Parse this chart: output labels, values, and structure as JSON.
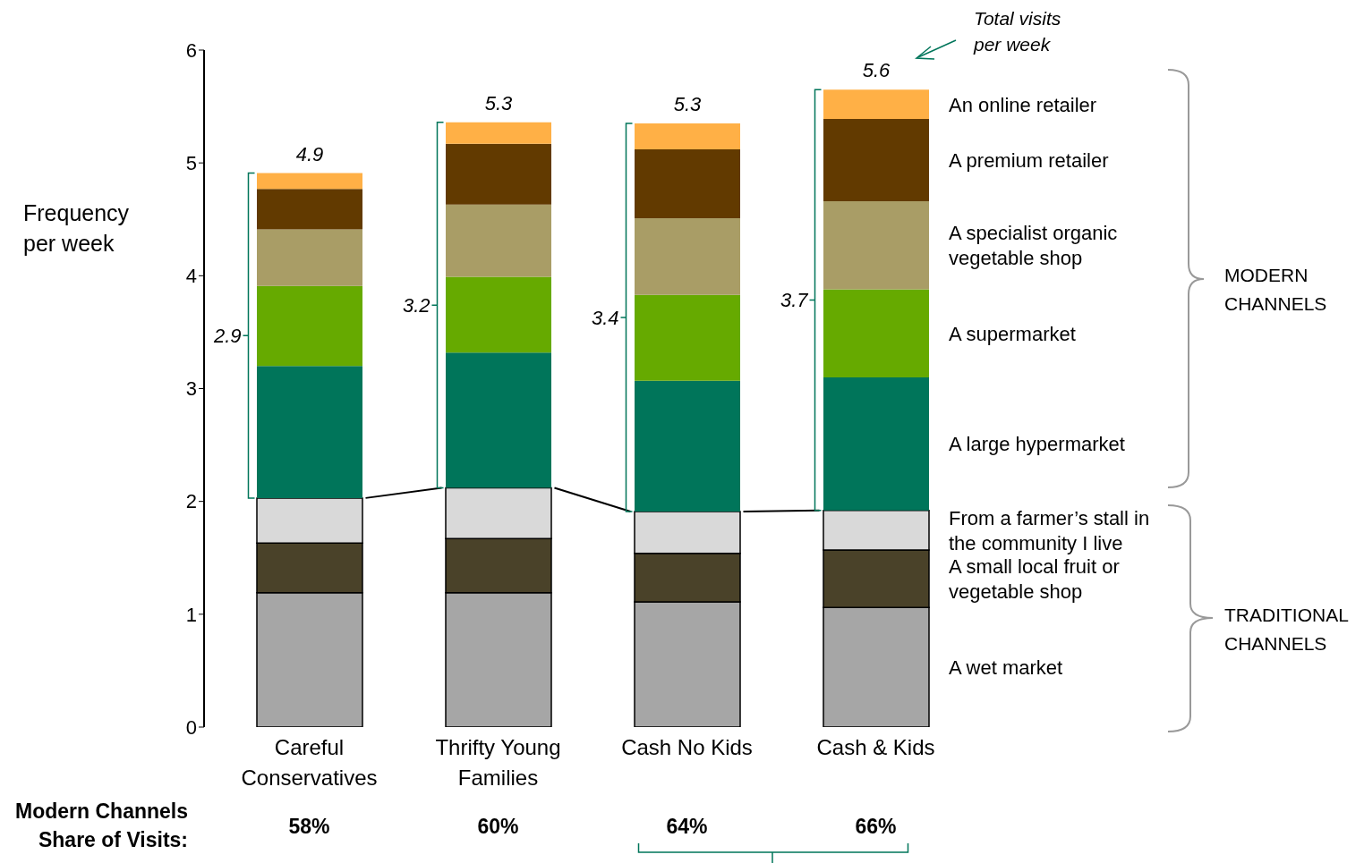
{
  "chart_data": {
    "type": "bar",
    "stacked": true,
    "ylabel": "Frequency per week",
    "ylim": [
      0,
      6
    ],
    "yticks": [
      0,
      1,
      2,
      3,
      4,
      5,
      6
    ],
    "categories": [
      "Careful Conservatives",
      "Thrifty Young Families",
      "Cash No Kids",
      "Cash & Kids"
    ],
    "series": [
      {
        "name": "A wet market",
        "color": "#a6a6a6",
        "values": [
          1.19,
          1.19,
          1.11,
          1.06
        ]
      },
      {
        "name": "A small local fruit or vegetable shop",
        "color": "#4a4229",
        "values": [
          0.44,
          0.48,
          0.43,
          0.51
        ]
      },
      {
        "name": "From a farmer’s stall in the community I live",
        "color": "#d9d9d9",
        "values": [
          0.4,
          0.45,
          0.37,
          0.35
        ]
      },
      {
        "name": "A large hypermarket",
        "color": "#00755a",
        "values": [
          1.17,
          1.2,
          1.16,
          1.18
        ]
      },
      {
        "name": "A supermarket",
        "color": "#66aa00",
        "values": [
          0.71,
          0.67,
          0.76,
          0.78
        ]
      },
      {
        "name": "A specialist organic vegetable shop",
        "color": "#a99d66",
        "values": [
          0.5,
          0.64,
          0.68,
          0.78
        ]
      },
      {
        "name": "A premium retailer",
        "color": "#623a00",
        "values": [
          0.36,
          0.54,
          0.61,
          0.73
        ]
      },
      {
        "name": "An online retailer",
        "color": "#ffb046",
        "values": [
          0.14,
          0.19,
          0.23,
          0.26
        ]
      }
    ],
    "totals": [
      "4.9",
      "5.3",
      "5.3",
      "5.6"
    ],
    "annotations": [
      "Total visits per week",
      "MODERN CHANNELS",
      "TRADITIONAL CHANNELS",
      "Modern Channels Share of Visits:",
      "58%",
      "60%",
      "64%",
      "66%",
      "2.9",
      "3.2",
      "3.4",
      "3.7"
    ]
  }
}
